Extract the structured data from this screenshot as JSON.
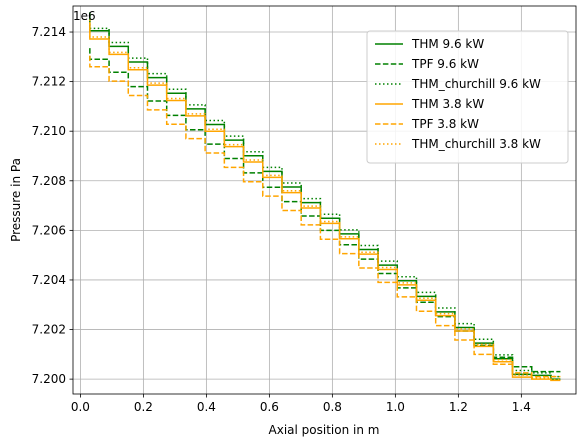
{
  "chart_data": {
    "type": "line",
    "title": "",
    "xlabel": "Axial position in m",
    "ylabel": "Pressure in Pa",
    "y_offset_label": "1e6",
    "xlim": [
      -0.0235,
      1.5735
    ],
    "ylim": [
      7.1994,
      7.21505
    ],
    "x_ticks": [
      0.0,
      0.2,
      0.4,
      0.6,
      0.8,
      1.0,
      1.2,
      1.4
    ],
    "x_tick_labels": [
      "0.0",
      "0.2",
      "0.4",
      "0.6",
      "0.8",
      "1.0",
      "1.2",
      "1.4"
    ],
    "y_ticks": [
      7.2,
      7.202,
      7.204,
      7.206,
      7.208,
      7.21,
      7.212,
      7.214
    ],
    "y_tick_labels": [
      "7.200",
      "7.202",
      "7.204",
      "7.206",
      "7.208",
      "7.210",
      "7.212",
      "7.214"
    ],
    "grid": true,
    "legend_position": "top-right",
    "x_edges": [
      0.03,
      0.091,
      0.152,
      0.213,
      0.274,
      0.335,
      0.396,
      0.457,
      0.518,
      0.579,
      0.64,
      0.701,
      0.762,
      0.823,
      0.884,
      0.945,
      1.006,
      1.067,
      1.128,
      1.189,
      1.25,
      1.311,
      1.372,
      1.433,
      1.494,
      1.524
    ],
    "series": [
      {
        "name": "THM 9.6 kW",
        "color": "#008000",
        "dash": "solid",
        "values": [
          7.21405,
          7.21342,
          7.21279,
          7.21216,
          7.21153,
          7.2109,
          7.21027,
          7.20964,
          7.20901,
          7.20838,
          7.20775,
          7.20712,
          7.20649,
          7.20586,
          7.20523,
          7.2046,
          7.20397,
          7.20334,
          7.20271,
          7.20208,
          7.20145,
          7.20082,
          7.20019,
          7.20015,
          7.2
        ],
        "top_spike": 7.21475
      },
      {
        "name": "TPF 9.6 kW",
        "color": "#008000",
        "dash": "dashed",
        "values": [
          7.2129,
          7.21238,
          7.2118,
          7.21122,
          7.21064,
          7.21006,
          7.20948,
          7.2089,
          7.20832,
          7.20774,
          7.20716,
          7.20658,
          7.206,
          7.20542,
          7.20484,
          7.20426,
          7.20368,
          7.2031,
          7.20252,
          7.20194,
          7.20136,
          7.20088,
          7.2005,
          7.2003,
          7.2003
        ],
        "top_spike": 7.21335
      },
      {
        "name": "THM_churchill 9.6 kW",
        "color": "#008000",
        "dash": "dotted",
        "values": [
          7.21415,
          7.21358,
          7.21295,
          7.21232,
          7.21169,
          7.21106,
          7.21043,
          7.2098,
          7.20917,
          7.20854,
          7.20791,
          7.20728,
          7.20665,
          7.20602,
          7.20539,
          7.20476,
          7.20413,
          7.2035,
          7.20287,
          7.20224,
          7.20161,
          7.20098,
          7.20035,
          7.20025,
          7.2001
        ],
        "top_spike": 7.2148
      },
      {
        "name": "THM 3.8 kW",
        "color": "#ffa500",
        "dash": "solid",
        "values": [
          7.21372,
          7.2131,
          7.21248,
          7.21186,
          7.21124,
          7.21062,
          7.21,
          7.20938,
          7.20876,
          7.20814,
          7.20752,
          7.2069,
          7.20628,
          7.20566,
          7.20504,
          7.20442,
          7.2038,
          7.20318,
          7.20256,
          7.20194,
          7.20132,
          7.2007,
          7.20008,
          7.2,
          7.19995
        ],
        "top_spike": 7.2144
      },
      {
        "name": "TPF 3.8 kW",
        "color": "#ffa500",
        "dash": "dashed",
        "values": [
          7.2126,
          7.21202,
          7.21144,
          7.21086,
          7.21028,
          7.2097,
          7.20912,
          7.20854,
          7.20796,
          7.20738,
          7.2068,
          7.20622,
          7.20564,
          7.20506,
          7.20448,
          7.2039,
          7.20332,
          7.20274,
          7.20216,
          7.20158,
          7.201,
          7.2006,
          7.20025,
          7.2001,
          7.2001
        ],
        "top_spike": 7.21305
      },
      {
        "name": "THM_churchill 3.8 kW",
        "color": "#ffa500",
        "dash": "dotted",
        "values": [
          7.2138,
          7.21318,
          7.21256,
          7.21194,
          7.21132,
          7.2107,
          7.21008,
          7.20946,
          7.20884,
          7.20822,
          7.2076,
          7.20698,
          7.20636,
          7.20574,
          7.20512,
          7.2045,
          7.20388,
          7.20326,
          7.20264,
          7.20202,
          7.2014,
          7.20078,
          7.20016,
          7.20005,
          7.19998
        ],
        "top_spike": 7.2145
      }
    ]
  }
}
